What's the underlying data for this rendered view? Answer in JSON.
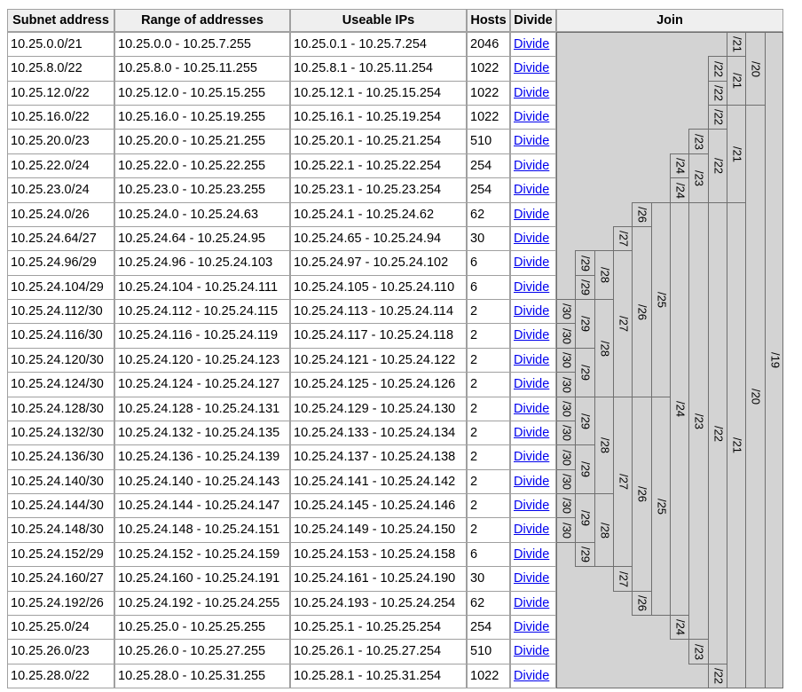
{
  "headers": {
    "subnet": "Subnet address",
    "range": "Range of addresses",
    "useable": "Useable IPs",
    "hosts": "Hosts",
    "divide": "Divide",
    "join": "Join"
  },
  "divide_label": "Divide",
  "rows": [
    {
      "subnet": "10.25.0.0/21",
      "range": "10.25.0.0 - 10.25.7.255",
      "useable": "10.25.0.1 - 10.25.7.254",
      "hosts": "2046"
    },
    {
      "subnet": "10.25.8.0/22",
      "range": "10.25.8.0 - 10.25.11.255",
      "useable": "10.25.8.1 - 10.25.11.254",
      "hosts": "1022"
    },
    {
      "subnet": "10.25.12.0/22",
      "range": "10.25.12.0 - 10.25.15.255",
      "useable": "10.25.12.1 - 10.25.15.254",
      "hosts": "1022"
    },
    {
      "subnet": "10.25.16.0/22",
      "range": "10.25.16.0 - 10.25.19.255",
      "useable": "10.25.16.1 - 10.25.19.254",
      "hosts": "1022"
    },
    {
      "subnet": "10.25.20.0/23",
      "range": "10.25.20.0 - 10.25.21.255",
      "useable": "10.25.20.1 - 10.25.21.254",
      "hosts": "510"
    },
    {
      "subnet": "10.25.22.0/24",
      "range": "10.25.22.0 - 10.25.22.255",
      "useable": "10.25.22.1 - 10.25.22.254",
      "hosts": "254"
    },
    {
      "subnet": "10.25.23.0/24",
      "range": "10.25.23.0 - 10.25.23.255",
      "useable": "10.25.23.1 - 10.25.23.254",
      "hosts": "254"
    },
    {
      "subnet": "10.25.24.0/26",
      "range": "10.25.24.0 - 10.25.24.63",
      "useable": "10.25.24.1 - 10.25.24.62",
      "hosts": "62"
    },
    {
      "subnet": "10.25.24.64/27",
      "range": "10.25.24.64 - 10.25.24.95",
      "useable": "10.25.24.65 - 10.25.24.94",
      "hosts": "30"
    },
    {
      "subnet": "10.25.24.96/29",
      "range": "10.25.24.96 - 10.25.24.103",
      "useable": "10.25.24.97 - 10.25.24.102",
      "hosts": "6"
    },
    {
      "subnet": "10.25.24.104/29",
      "range": "10.25.24.104 - 10.25.24.111",
      "useable": "10.25.24.105 - 10.25.24.110",
      "hosts": "6"
    },
    {
      "subnet": "10.25.24.112/30",
      "range": "10.25.24.112 - 10.25.24.115",
      "useable": "10.25.24.113 - 10.25.24.114",
      "hosts": "2"
    },
    {
      "subnet": "10.25.24.116/30",
      "range": "10.25.24.116 - 10.25.24.119",
      "useable": "10.25.24.117 - 10.25.24.118",
      "hosts": "2"
    },
    {
      "subnet": "10.25.24.120/30",
      "range": "10.25.24.120 - 10.25.24.123",
      "useable": "10.25.24.121 - 10.25.24.122",
      "hosts": "2"
    },
    {
      "subnet": "10.25.24.124/30",
      "range": "10.25.24.124 - 10.25.24.127",
      "useable": "10.25.24.125 - 10.25.24.126",
      "hosts": "2"
    },
    {
      "subnet": "10.25.24.128/30",
      "range": "10.25.24.128 - 10.25.24.131",
      "useable": "10.25.24.129 - 10.25.24.130",
      "hosts": "2"
    },
    {
      "subnet": "10.25.24.132/30",
      "range": "10.25.24.132 - 10.25.24.135",
      "useable": "10.25.24.133 - 10.25.24.134",
      "hosts": "2"
    },
    {
      "subnet": "10.25.24.136/30",
      "range": "10.25.24.136 - 10.25.24.139",
      "useable": "10.25.24.137 - 10.25.24.138",
      "hosts": "2"
    },
    {
      "subnet": "10.25.24.140/30",
      "range": "10.25.24.140 - 10.25.24.143",
      "useable": "10.25.24.141 - 10.25.24.142",
      "hosts": "2"
    },
    {
      "subnet": "10.25.24.144/30",
      "range": "10.25.24.144 - 10.25.24.147",
      "useable": "10.25.24.145 - 10.25.24.146",
      "hosts": "2"
    },
    {
      "subnet": "10.25.24.148/30",
      "range": "10.25.24.148 - 10.25.24.151",
      "useable": "10.25.24.149 - 10.25.24.150",
      "hosts": "2"
    },
    {
      "subnet": "10.25.24.152/29",
      "range": "10.25.24.152 - 10.25.24.159",
      "useable": "10.25.24.153 - 10.25.24.158",
      "hosts": "6"
    },
    {
      "subnet": "10.25.24.160/27",
      "range": "10.25.24.160 - 10.25.24.191",
      "useable": "10.25.24.161 - 10.25.24.190",
      "hosts": "30"
    },
    {
      "subnet": "10.25.24.192/26",
      "range": "10.25.24.192 - 10.25.24.255",
      "useable": "10.25.24.193 - 10.25.24.254",
      "hosts": "62"
    },
    {
      "subnet": "10.25.25.0/24",
      "range": "10.25.25.0 - 10.25.25.255",
      "useable": "10.25.25.1 - 10.25.25.254",
      "hosts": "254"
    },
    {
      "subnet": "10.25.26.0/23",
      "range": "10.25.26.0 - 10.25.27.255",
      "useable": "10.25.26.1 - 10.25.27.254",
      "hosts": "510"
    },
    {
      "subnet": "10.25.28.0/22",
      "range": "10.25.28.0 - 10.25.31.255",
      "useable": "10.25.28.1 - 10.25.31.254",
      "hosts": "1022"
    }
  ],
  "join": [
    {
      "label": "/30",
      "col": 0,
      "start": 11,
      "span": 1
    },
    {
      "label": "/30",
      "col": 0,
      "start": 12,
      "span": 1
    },
    {
      "label": "/30",
      "col": 0,
      "start": 13,
      "span": 1
    },
    {
      "label": "/30",
      "col": 0,
      "start": 14,
      "span": 1
    },
    {
      "label": "/30",
      "col": 0,
      "start": 15,
      "span": 1
    },
    {
      "label": "/30",
      "col": 0,
      "start": 16,
      "span": 1
    },
    {
      "label": "/30",
      "col": 0,
      "start": 17,
      "span": 1
    },
    {
      "label": "/30",
      "col": 0,
      "start": 18,
      "span": 1
    },
    {
      "label": "/30",
      "col": 0,
      "start": 19,
      "span": 1
    },
    {
      "label": "/30",
      "col": 0,
      "start": 20,
      "span": 1
    },
    {
      "label": "/29",
      "col": 1,
      "start": 9,
      "span": 1
    },
    {
      "label": "/29",
      "col": 1,
      "start": 10,
      "span": 1
    },
    {
      "label": "/29",
      "col": 1,
      "start": 11,
      "span": 2
    },
    {
      "label": "/29",
      "col": 1,
      "start": 13,
      "span": 2
    },
    {
      "label": "/29",
      "col": 1,
      "start": 15,
      "span": 2
    },
    {
      "label": "/29",
      "col": 1,
      "start": 17,
      "span": 2
    },
    {
      "label": "/29",
      "col": 1,
      "start": 19,
      "span": 2
    },
    {
      "label": "/29",
      "col": 1,
      "start": 21,
      "span": 1
    },
    {
      "label": "/28",
      "col": 2,
      "start": 9,
      "span": 2
    },
    {
      "label": "/28",
      "col": 2,
      "start": 11,
      "span": 4
    },
    {
      "label": "/28",
      "col": 2,
      "start": 15,
      "span": 4
    },
    {
      "label": "/28",
      "col": 2,
      "start": 19,
      "span": 3
    },
    {
      "label": "/27",
      "col": 3,
      "start": 8,
      "span": 1
    },
    {
      "label": "/27",
      "col": 3,
      "start": 9,
      "span": 6
    },
    {
      "label": "/27",
      "col": 3,
      "start": 15,
      "span": 7
    },
    {
      "label": "/27",
      "col": 3,
      "start": 22,
      "span": 1
    },
    {
      "label": "/26",
      "col": 4,
      "start": 7,
      "span": 1
    },
    {
      "label": "/26",
      "col": 4,
      "start": 8,
      "span": 7
    },
    {
      "label": "/26",
      "col": 4,
      "start": 15,
      "span": 8
    },
    {
      "label": "/26",
      "col": 4,
      "start": 23,
      "span": 1
    },
    {
      "label": "/25",
      "col": 5,
      "start": 7,
      "span": 8
    },
    {
      "label": "/25",
      "col": 5,
      "start": 15,
      "span": 9
    },
    {
      "label": "/24",
      "col": 6,
      "start": 5,
      "span": 1
    },
    {
      "label": "/24",
      "col": 6,
      "start": 6,
      "span": 1
    },
    {
      "label": "/24",
      "col": 6,
      "start": 7,
      "span": 17
    },
    {
      "label": "/24",
      "col": 6,
      "start": 24,
      "span": 1
    },
    {
      "label": "/23",
      "col": 7,
      "start": 4,
      "span": 1
    },
    {
      "label": "/23",
      "col": 7,
      "start": 5,
      "span": 2
    },
    {
      "label": "/23",
      "col": 7,
      "start": 7,
      "span": 18
    },
    {
      "label": "/23",
      "col": 7,
      "start": 25,
      "span": 1
    },
    {
      "label": "/22",
      "col": 8,
      "start": 1,
      "span": 1
    },
    {
      "label": "/22",
      "col": 8,
      "start": 2,
      "span": 1
    },
    {
      "label": "/22",
      "col": 8,
      "start": 3,
      "span": 1
    },
    {
      "label": "/22",
      "col": 8,
      "start": 4,
      "span": 3
    },
    {
      "label": "/22",
      "col": 8,
      "start": 7,
      "span": 19
    },
    {
      "label": "/22",
      "col": 8,
      "start": 26,
      "span": 1
    },
    {
      "label": "/21",
      "col": 9,
      "start": 0,
      "span": 1
    },
    {
      "label": "/21",
      "col": 9,
      "start": 1,
      "span": 2
    },
    {
      "label": "/21",
      "col": 9,
      "start": 3,
      "span": 4
    },
    {
      "label": "/21",
      "col": 9,
      "start": 7,
      "span": 20
    },
    {
      "label": "/20",
      "col": 10,
      "start": 0,
      "span": 3
    },
    {
      "label": "/20",
      "col": 10,
      "start": 3,
      "span": 24
    },
    {
      "label": "/19",
      "col": 11,
      "start": 0,
      "span": 27
    }
  ]
}
